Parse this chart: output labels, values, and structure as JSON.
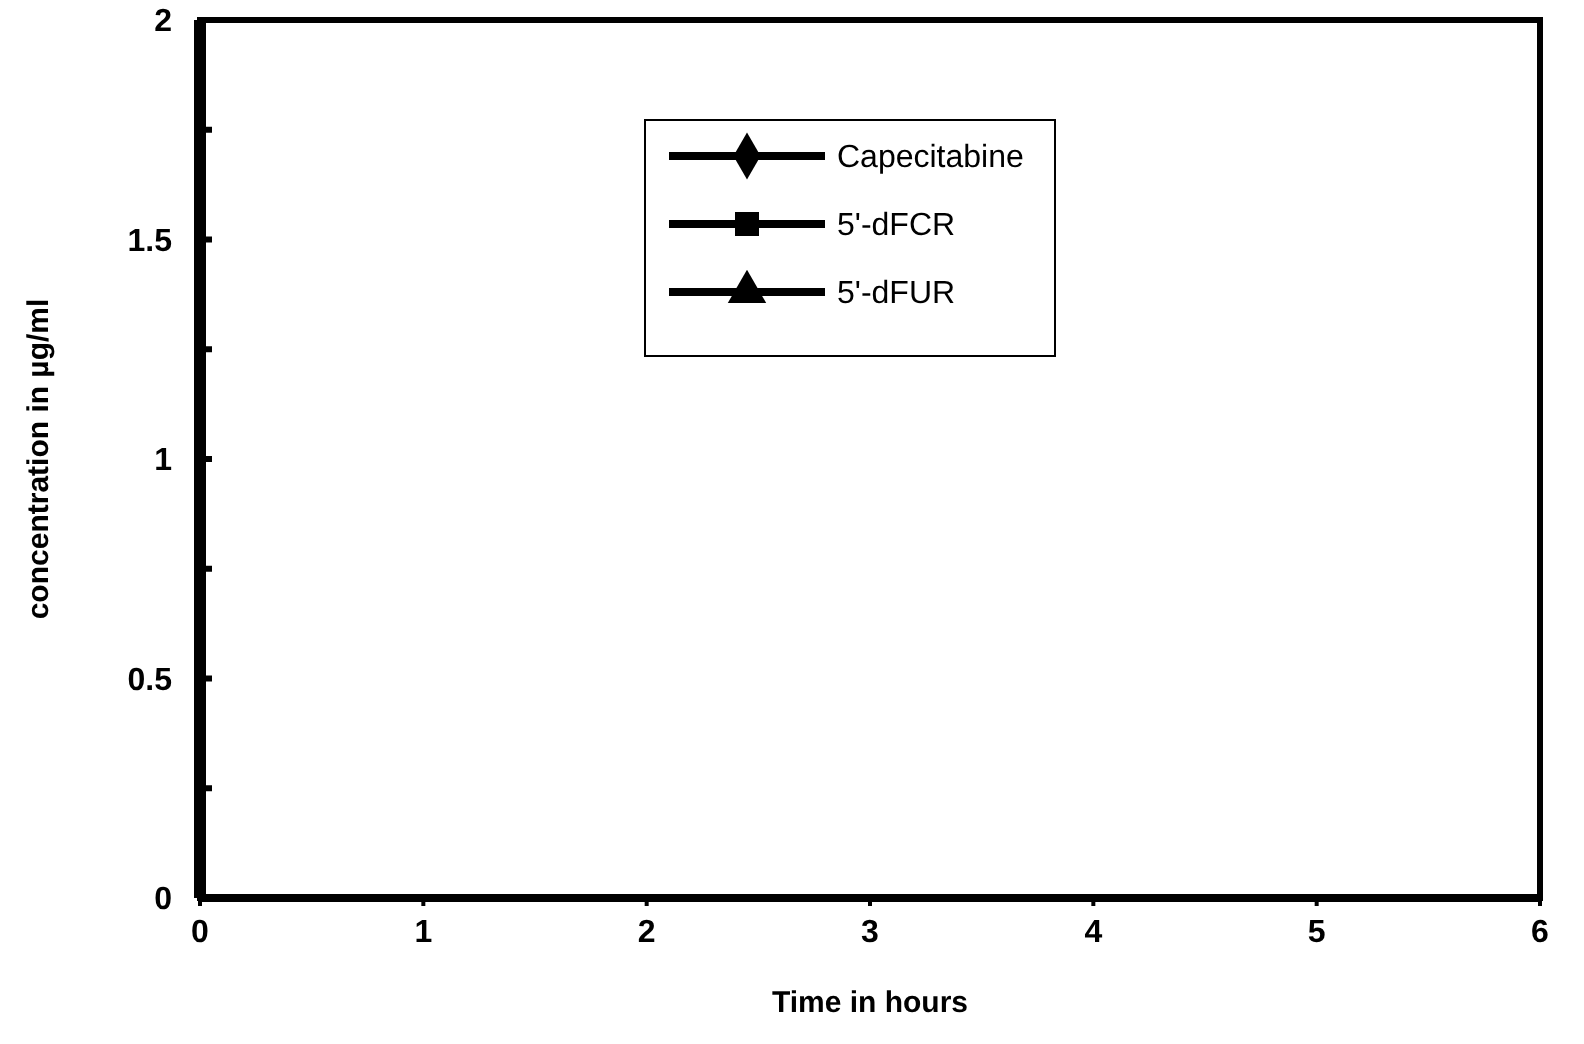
{
  "chart_data": {
    "type": "line",
    "xlabel": "Time in hours",
    "ylabel": "concentration in µg/ml",
    "categories": [
      "0",
      "1",
      "2",
      "3",
      "4",
      "5",
      "6"
    ],
    "ylim": [
      0,
      2
    ],
    "yticks": [
      0,
      {
        "value": 0.25,
        "label": null
      },
      0.5,
      {
        "value": 0.75,
        "label": null
      },
      1,
      {
        "value": 1.25,
        "label": null
      },
      1.5,
      {
        "value": 1.75,
        "label": null
      },
      2
    ],
    "legend": "top",
    "series": [
      {
        "name": "Capecitabine",
        "color": "#000000",
        "marker": "diamond",
        "values": [
          null,
          null,
          null,
          null,
          null,
          null,
          null
        ]
      },
      {
        "name": "5'-dFCR",
        "color": "#000000",
        "marker": "square",
        "values": [
          null,
          null,
          null,
          null,
          null,
          null,
          null
        ]
      },
      {
        "name": "5'-dFUR",
        "color": "#000000",
        "marker": "triangle",
        "values": [
          null,
          null,
          null,
          null,
          null,
          null,
          null
        ]
      }
    ]
  }
}
